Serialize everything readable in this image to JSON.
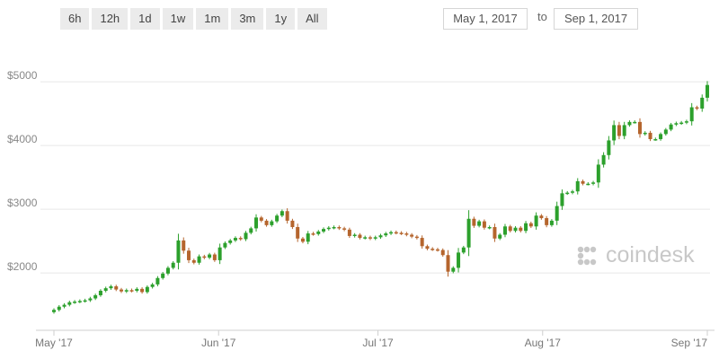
{
  "range_buttons": [
    "6h",
    "12h",
    "1d",
    "1w",
    "1m",
    "3m",
    "1y",
    "All"
  ],
  "date_range": {
    "from": "May 1, 2017",
    "to_label": "to",
    "to": "Sep 1, 2017"
  },
  "watermark": {
    "text": "coindesk",
    "icon": "coindesk-logo-icon"
  },
  "colors": {
    "up": "#2ca02c",
    "down": "#b5652d",
    "grid": "#e6e6e6"
  },
  "chart_data": {
    "type": "candlestick",
    "title": "",
    "xlabel": "",
    "ylabel": "",
    "y_ticks": [
      2000,
      3000,
      4000,
      5000
    ],
    "y_tick_labels": [
      "$2000",
      "$3000",
      "$4000",
      "$5000"
    ],
    "ylim": [
      1100,
      5650
    ],
    "x_ticks": [
      "May '17",
      "Jun '17",
      "Jul '17",
      "Aug '17",
      "Sep '17"
    ],
    "x_tick_dates": [
      "2017-05-01",
      "2017-06-01",
      "2017-07-01",
      "2017-08-01",
      "2017-09-01"
    ],
    "xlim": [
      "2017-05-01",
      "2017-09-01"
    ],
    "grid": true,
    "close_values": [
      1420,
      1470,
      1500,
      1540,
      1550,
      1560,
      1570,
      1600,
      1650,
      1720,
      1760,
      1790,
      1740,
      1710,
      1730,
      1720,
      1750,
      1700,
      1780,
      1820,
      1920,
      1990,
      2080,
      2160,
      2510,
      2350,
      2200,
      2160,
      2260,
      2240,
      2290,
      2200,
      2400,
      2470,
      2510,
      2550,
      2530,
      2630,
      2700,
      2870,
      2820,
      2750,
      2810,
      2900,
      2970,
      2820,
      2720,
      2540,
      2490,
      2620,
      2610,
      2650,
      2690,
      2710,
      2720,
      2700,
      2680,
      2580,
      2600,
      2550,
      2560,
      2540,
      2560,
      2590,
      2620,
      2640,
      2630,
      2620,
      2600,
      2570,
      2550,
      2420,
      2380,
      2370,
      2360,
      2280,
      2020,
      2080,
      2320,
      2400,
      2850,
      2740,
      2810,
      2710,
      2720,
      2540,
      2600,
      2730,
      2660,
      2710,
      2660,
      2780,
      2730,
      2900,
      2860,
      2750,
      2820,
      3050,
      3250,
      3260,
      3280,
      3440,
      3400,
      3400,
      3420,
      3700,
      3850,
      4080,
      4320,
      4150,
      4320,
      4370,
      4370,
      4180,
      4200,
      4100,
      4100,
      4180,
      4250,
      4330,
      4350,
      4360,
      4380,
      4600,
      4580,
      4750,
      4950
    ]
  }
}
